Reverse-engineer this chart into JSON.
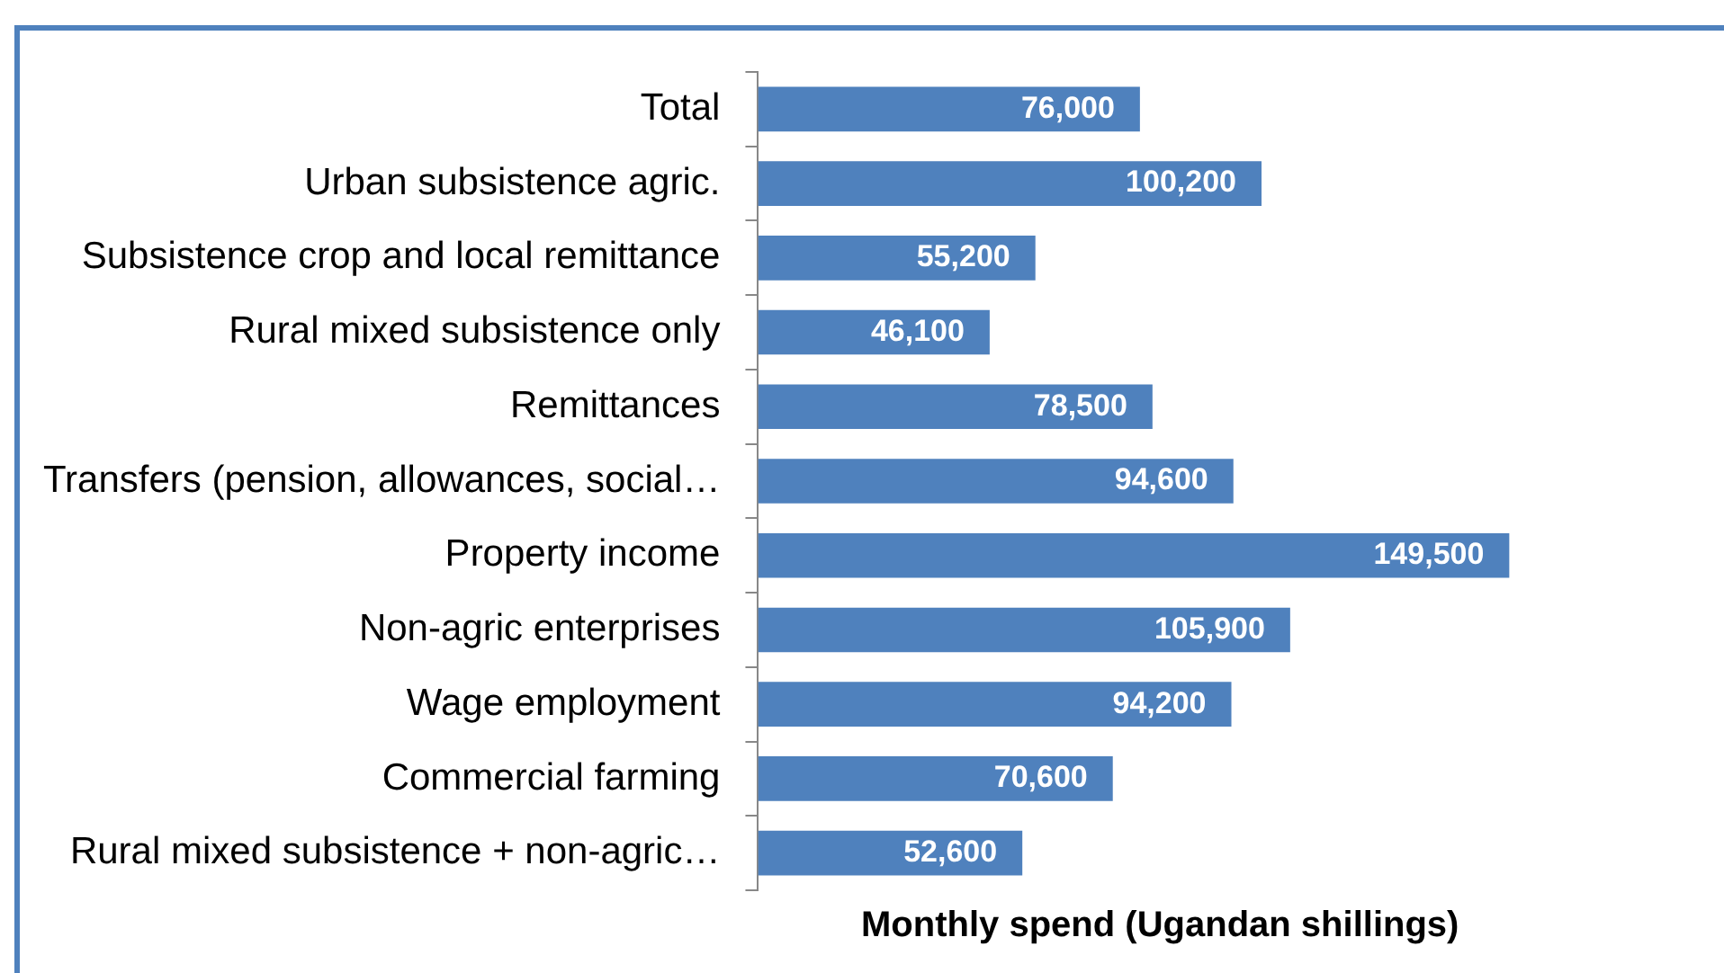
{
  "chart_data": {
    "type": "bar",
    "orientation": "horizontal",
    "xlabel": "Monthly spend (Ugandan shillings)",
    "categories": [
      "Total",
      "Urban subsistence agric.",
      "Subsistence crop and local remittance",
      "Rural mixed subsistence only",
      "Remittances",
      "Transfers (pension, allowances, social…",
      "Property income",
      "Non-agric enterprises",
      "Wage employment",
      "Commercial farming",
      "Rural mixed subsistence + non-agric…"
    ],
    "values": [
      76000,
      100200,
      55200,
      46100,
      78500,
      94600,
      149500,
      105900,
      94200,
      70600,
      52600
    ],
    "value_labels": [
      "76,000",
      "100,200",
      "55,200",
      "46,100",
      "78,500",
      "94,600",
      "149,500",
      "105,900",
      "94,200",
      "70,600",
      "52,600"
    ],
    "color": "#4f81bd",
    "grid": false,
    "legend": false
  }
}
